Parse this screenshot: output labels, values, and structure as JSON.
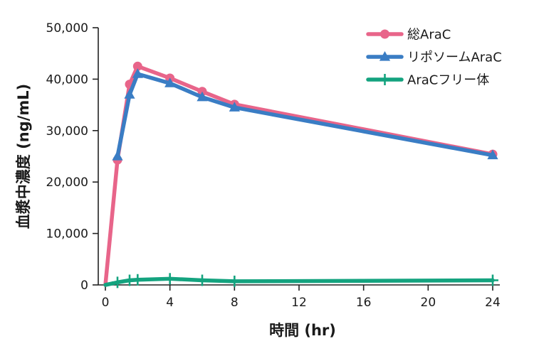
{
  "chart_data": {
    "type": "line",
    "title": "",
    "xlabel": "時間 (hr)",
    "ylabel": "血漿中濃度 (ng/mL)",
    "xlim": [
      0,
      24
    ],
    "ylim": [
      0,
      50000
    ],
    "xticks": [
      0,
      4,
      8,
      12,
      16,
      20,
      24
    ],
    "xtick_labels": [
      "0",
      "4",
      "8",
      "12",
      "16",
      "20",
      "24"
    ],
    "yticks": [
      0,
      10000,
      20000,
      30000,
      40000,
      50000
    ],
    "ytick_labels": [
      "0",
      "10,000",
      "20,000",
      "30,000",
      "40,000",
      "50,000"
    ],
    "grid": false,
    "legend_position": "top-right",
    "series": [
      {
        "name": "総AraC",
        "color": "#e8658a",
        "marker": "circle",
        "x": [
          0,
          0.75,
          1.5,
          2,
          4,
          6,
          8,
          24
        ],
        "y": [
          0,
          24300,
          39000,
          42500,
          40200,
          37600,
          35100,
          25400
        ]
      },
      {
        "name": "リポソームAraC",
        "color": "#3a7dc4",
        "marker": "triangle",
        "x": [
          0.75,
          1.5,
          2,
          4,
          6,
          8,
          24
        ],
        "y": [
          25000,
          37000,
          41000,
          39200,
          36500,
          34500,
          25200
        ]
      },
      {
        "name": "AraCフリー体",
        "color": "#14a37f",
        "marker": "plus",
        "x": [
          0,
          0.75,
          1.5,
          2,
          4,
          6,
          8,
          24
        ],
        "y": [
          0,
          500,
          900,
          1000,
          1200,
          900,
          700,
          900
        ]
      }
    ]
  }
}
